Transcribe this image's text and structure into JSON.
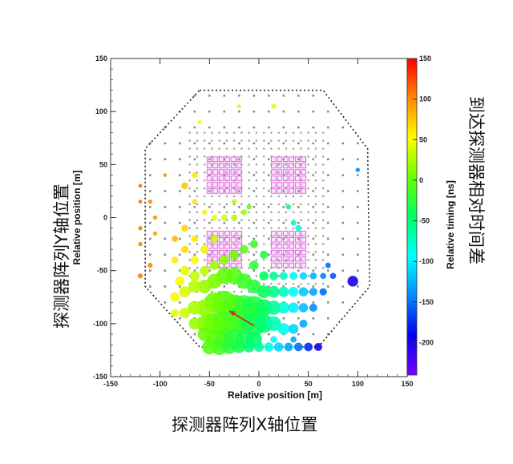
{
  "chart_data": {
    "type": "scatter",
    "xlabel": "Relative position [m]",
    "ylabel": "Relative position [m]",
    "xlim": [
      -150,
      150
    ],
    "ylim": [
      -150,
      150
    ],
    "x_ticks": [
      "-150",
      "-100",
      "-50",
      "0",
      "50",
      "100",
      "150"
    ],
    "y_ticks": [
      "150",
      "100",
      "50",
      "0",
      "-50",
      "-100",
      "-150"
    ],
    "colorbar": {
      "label": "Relative timing [ns]",
      "range": [
        -240,
        150
      ],
      "ticks": [
        "150",
        "100",
        "50",
        "0",
        "-50",
        "-100",
        "-150",
        "-200"
      ],
      "colormap": [
        "#7a00ff",
        "#0000ee",
        "#0088ff",
        "#00ffff",
        "#00ff66",
        "#66ff00",
        "#ffff00",
        "#ff8800",
        "#ff0000"
      ]
    },
    "boundary_octagon": [
      [
        -60,
        120
      ],
      [
        65,
        120
      ],
      [
        110,
        65
      ],
      [
        112,
        -65
      ],
      [
        60,
        -122
      ],
      [
        -60,
        -122
      ],
      [
        -115,
        -65
      ],
      [
        -115,
        65
      ]
    ],
    "dense_arrays": [
      {
        "x": [
          -50,
          -20
        ],
        "y": [
          25,
          55
        ]
      },
      {
        "x": [
          15,
          45
        ],
        "y": [
          25,
          55
        ]
      },
      {
        "x": [
          -50,
          -20
        ],
        "y": [
          -45,
          -15
        ]
      },
      {
        "x": [
          15,
          45
        ],
        "y": [
          -45,
          -15
        ]
      }
    ],
    "array_color": "#e060e0",
    "shower_core": {
      "x": -30,
      "y": -88
    },
    "arrow": {
      "from": [
        -30,
        -88
      ],
      "to": [
        -5,
        -102
      ],
      "color": "#c0392b"
    },
    "hits": [
      {
        "x": -20,
        "y": 105,
        "t": 60,
        "s": 1.2
      },
      {
        "x": 15,
        "y": 105,
        "t": 40,
        "s": 1.5
      },
      {
        "x": -60,
        "y": 90,
        "t": 55,
        "s": 1.2
      },
      {
        "x": -95,
        "y": 40,
        "t": 90,
        "s": 1.2
      },
      {
        "x": -120,
        "y": 30,
        "t": 110,
        "s": 1.2
      },
      {
        "x": -120,
        "y": 15,
        "t": 110,
        "s": 1.2
      },
      {
        "x": -75,
        "y": 30,
        "t": 75,
        "s": 2.2
      },
      {
        "x": -65,
        "y": 40,
        "t": 60,
        "s": 1.8
      },
      {
        "x": 100,
        "y": 45,
        "t": -140,
        "s": 1.4
      },
      {
        "x": -110,
        "y": 15,
        "t": 100,
        "s": 1.4
      },
      {
        "x": -105,
        "y": 0,
        "t": 95,
        "s": 1.4
      },
      {
        "x": -120,
        "y": -10,
        "t": 105,
        "s": 1.4
      },
      {
        "x": -105,
        "y": -15,
        "t": 90,
        "s": 1.4
      },
      {
        "x": -85,
        "y": -20,
        "t": 80,
        "s": 2
      },
      {
        "x": -110,
        "y": -45,
        "t": 100,
        "s": 1.6
      },
      {
        "x": -120,
        "y": -55,
        "t": 105,
        "s": 1.6
      },
      {
        "x": -120,
        "y": -25,
        "t": 100,
        "s": 1.4
      },
      {
        "x": -65,
        "y": 15,
        "t": 65,
        "s": 1.6
      },
      {
        "x": -55,
        "y": 5,
        "t": 55,
        "s": 1.6
      },
      {
        "x": -45,
        "y": 0,
        "t": 45,
        "s": 1.8
      },
      {
        "x": -35,
        "y": 0,
        "t": 40,
        "s": 2
      },
      {
        "x": -25,
        "y": 0,
        "t": 30,
        "s": 2
      },
      {
        "x": -15,
        "y": 5,
        "t": 20,
        "s": 1.8
      },
      {
        "x": -25,
        "y": 15,
        "t": 30,
        "s": 1.6
      },
      {
        "x": -10,
        "y": 10,
        "t": 5,
        "s": 1.6
      },
      {
        "x": 35,
        "y": -5,
        "t": -70,
        "s": 1.8
      },
      {
        "x": 40,
        "y": -10,
        "t": -80,
        "s": 2
      },
      {
        "x": 30,
        "y": 10,
        "t": -50,
        "s": 1.6
      },
      {
        "x": -75,
        "y": -10,
        "t": 70,
        "s": 2.2
      },
      {
        "x": -65,
        "y": -20,
        "t": 60,
        "s": 2.2
      },
      {
        "x": -75,
        "y": -30,
        "t": 65,
        "s": 2.4
      },
      {
        "x": -65,
        "y": -40,
        "t": 50,
        "s": 2.6
      },
      {
        "x": -55,
        "y": -30,
        "t": 45,
        "s": 2.6
      },
      {
        "x": -45,
        "y": -20,
        "t": 35,
        "s": 2.4
      },
      {
        "x": -85,
        "y": -40,
        "t": 60,
        "s": 2.2
      },
      {
        "x": -75,
        "y": -50,
        "t": 45,
        "s": 3
      },
      {
        "x": -65,
        "y": -55,
        "t": 35,
        "s": 3.2
      },
      {
        "x": -55,
        "y": -50,
        "t": 30,
        "s": 3
      },
      {
        "x": -45,
        "y": -45,
        "t": 25,
        "s": 3
      },
      {
        "x": -35,
        "y": -40,
        "t": 15,
        "s": 3
      },
      {
        "x": -25,
        "y": -35,
        "t": 5,
        "s": 3
      },
      {
        "x": -15,
        "y": -30,
        "t": -5,
        "s": 2.8
      },
      {
        "x": -5,
        "y": -25,
        "t": -15,
        "s": 2.6
      },
      {
        "x": 5,
        "y": -35,
        "t": -30,
        "s": 2.6
      },
      {
        "x": -5,
        "y": -45,
        "t": -25,
        "s": 3
      },
      {
        "x": 5,
        "y": -55,
        "t": -45,
        "s": 3
      },
      {
        "x": 15,
        "y": -55,
        "t": -60,
        "s": 2.8
      },
      {
        "x": 25,
        "y": -55,
        "t": -75,
        "s": 2.6
      },
      {
        "x": 35,
        "y": -55,
        "t": -90,
        "s": 2.6
      },
      {
        "x": 45,
        "y": -55,
        "t": -110,
        "s": 2.4
      },
      {
        "x": 55,
        "y": -55,
        "t": -125,
        "s": 2.2
      },
      {
        "x": 65,
        "y": -55,
        "t": -140,
        "s": 2
      },
      {
        "x": 75,
        "y": -55,
        "t": -160,
        "s": 2
      },
      {
        "x": 70,
        "y": -45,
        "t": -150,
        "s": 1.8
      },
      {
        "x": 95,
        "y": -60,
        "t": -200,
        "s": 3.5
      },
      {
        "x": -80,
        "y": -60,
        "t": 50,
        "s": 3
      },
      {
        "x": -85,
        "y": -75,
        "t": 55,
        "s": 3
      },
      {
        "x": -75,
        "y": -70,
        "t": 40,
        "s": 3.6
      },
      {
        "x": -65,
        "y": -65,
        "t": 30,
        "s": 4
      },
      {
        "x": -55,
        "y": -65,
        "t": 20,
        "s": 4.4
      },
      {
        "x": -45,
        "y": -60,
        "t": 10,
        "s": 4.8
      },
      {
        "x": -35,
        "y": -55,
        "t": 0,
        "s": 5.2
      },
      {
        "x": -25,
        "y": -55,
        "t": -5,
        "s": 5.4
      },
      {
        "x": -15,
        "y": -60,
        "t": -15,
        "s": 5
      },
      {
        "x": -5,
        "y": -65,
        "t": -25,
        "s": 4.6
      },
      {
        "x": 5,
        "y": -70,
        "t": -40,
        "s": 4.2
      },
      {
        "x": 15,
        "y": -70,
        "t": -55,
        "s": 3.8
      },
      {
        "x": 25,
        "y": -70,
        "t": -75,
        "s": 3.4
      },
      {
        "x": 35,
        "y": -70,
        "t": -95,
        "s": 3.2
      },
      {
        "x": 45,
        "y": -70,
        "t": -115,
        "s": 3
      },
      {
        "x": 55,
        "y": -70,
        "t": -130,
        "s": 2.6
      },
      {
        "x": 65,
        "y": -70,
        "t": -150,
        "s": 2.4
      },
      {
        "x": -85,
        "y": -90,
        "t": 45,
        "s": 2.6
      },
      {
        "x": -75,
        "y": -90,
        "t": 35,
        "s": 3.4
      },
      {
        "x": -65,
        "y": -85,
        "t": 25,
        "s": 4.4
      },
      {
        "x": -55,
        "y": -85,
        "t": 15,
        "s": 5.4
      },
      {
        "x": -45,
        "y": -80,
        "t": 5,
        "s": 6.6
      },
      {
        "x": -35,
        "y": -80,
        "t": -5,
        "s": 7.6
      },
      {
        "x": -25,
        "y": -85,
        "t": -10,
        "s": 8.6
      },
      {
        "x": -15,
        "y": -85,
        "t": -20,
        "s": 8.2
      },
      {
        "x": -5,
        "y": -85,
        "t": -30,
        "s": 7.6
      },
      {
        "x": 5,
        "y": -85,
        "t": -40,
        "s": 5.6
      },
      {
        "x": 15,
        "y": -85,
        "t": -60,
        "s": 4.6
      },
      {
        "x": 25,
        "y": -85,
        "t": -80,
        "s": 3.8
      },
      {
        "x": 35,
        "y": -85,
        "t": -100,
        "s": 3.4
      },
      {
        "x": 45,
        "y": -85,
        "t": -120,
        "s": 3
      },
      {
        "x": 55,
        "y": -85,
        "t": -140,
        "s": 2.6
      },
      {
        "x": -65,
        "y": -100,
        "t": 20,
        "s": 3.8
      },
      {
        "x": -55,
        "y": -100,
        "t": 10,
        "s": 5.4
      },
      {
        "x": -45,
        "y": -100,
        "t": 0,
        "s": 7.2
      },
      {
        "x": -35,
        "y": -100,
        "t": -10,
        "s": 8.6
      },
      {
        "x": -25,
        "y": -95,
        "t": -15,
        "s": 9.6
      },
      {
        "x": -15,
        "y": -95,
        "t": -25,
        "s": 9.4
      },
      {
        "x": -5,
        "y": -100,
        "t": -35,
        "s": 8
      },
      {
        "x": 5,
        "y": -100,
        "t": -50,
        "s": 6
      },
      {
        "x": 15,
        "y": -100,
        "t": -70,
        "s": 4.8
      },
      {
        "x": 25,
        "y": -105,
        "t": -90,
        "s": 3.8
      },
      {
        "x": 35,
        "y": -105,
        "t": -110,
        "s": 3.2
      },
      {
        "x": 45,
        "y": -100,
        "t": -130,
        "s": 2.6
      },
      {
        "x": -55,
        "y": -110,
        "t": 5,
        "s": 4.4
      },
      {
        "x": -45,
        "y": -115,
        "t": -5,
        "s": 5.6
      },
      {
        "x": -35,
        "y": -115,
        "t": -15,
        "s": 6.4
      },
      {
        "x": -25,
        "y": -115,
        "t": -25,
        "s": 6.4
      },
      {
        "x": -15,
        "y": -115,
        "t": -35,
        "s": 5.8
      },
      {
        "x": -5,
        "y": -115,
        "t": -45,
        "s": 5.2
      },
      {
        "x": -50,
        "y": -122,
        "t": -5,
        "s": 4.8
      },
      {
        "x": -40,
        "y": -122,
        "t": -15,
        "s": 5.2
      },
      {
        "x": -30,
        "y": -122,
        "t": -25,
        "s": 4.6
      },
      {
        "x": -20,
        "y": -122,
        "t": -35,
        "s": 4
      },
      {
        "x": -10,
        "y": -122,
        "t": -50,
        "s": 3.6
      },
      {
        "x": 0,
        "y": -122,
        "t": -65,
        "s": 3.2
      },
      {
        "x": 10,
        "y": -122,
        "t": -85,
        "s": 3
      },
      {
        "x": 20,
        "y": -122,
        "t": -110,
        "s": 3
      },
      {
        "x": 30,
        "y": -122,
        "t": -130,
        "s": 2.8
      },
      {
        "x": 40,
        "y": -122,
        "t": -150,
        "s": 2.8
      },
      {
        "x": 50,
        "y": -122,
        "t": -175,
        "s": 2.8
      },
      {
        "x": 60,
        "y": -122,
        "t": -200,
        "s": 2.6
      },
      {
        "x": 15,
        "y": -115,
        "t": -95,
        "s": 2.2
      },
      {
        "x": 35,
        "y": -115,
        "t": -130,
        "s": 2
      }
    ]
  }
}
